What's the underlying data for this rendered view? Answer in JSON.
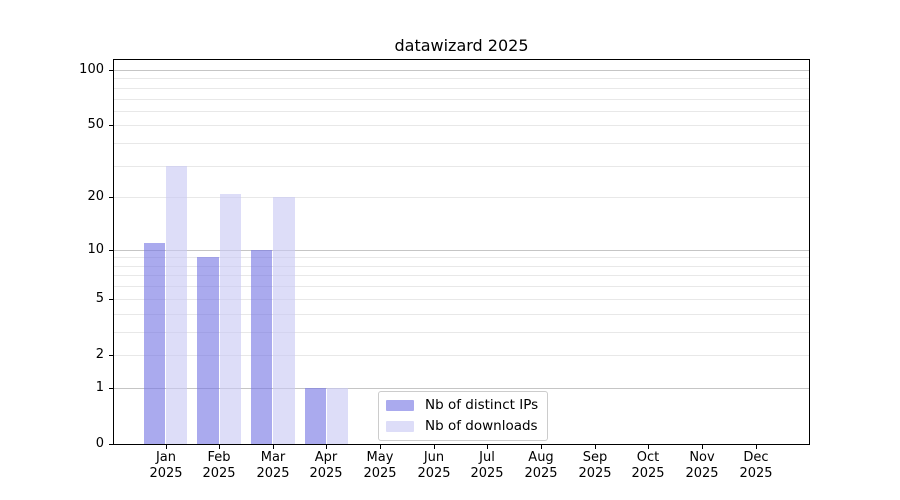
{
  "chart_data": {
    "type": "bar",
    "title": "datawizard 2025",
    "categories": [
      "Jan",
      "Feb",
      "Mar",
      "Apr",
      "May",
      "Jun",
      "Jul",
      "Aug",
      "Sep",
      "Oct",
      "Nov",
      "Dec"
    ],
    "category_sublabel": "2025",
    "series": [
      {
        "name": "Nb of distinct IPs",
        "color": "#aaaaee",
        "fill": "rgba(118,118,228,0.62)",
        "values": [
          11,
          9,
          10,
          1,
          0,
          0,
          0,
          0,
          0,
          0,
          0,
          0
        ]
      },
      {
        "name": "Nb of downloads",
        "color": "#ddddf8",
        "fill": "rgba(200,200,244,0.62)",
        "values": [
          30,
          21,
          20,
          1,
          0,
          0,
          0,
          0,
          0,
          0,
          0,
          0
        ]
      }
    ],
    "yticks": [
      0,
      1,
      2,
      5,
      10,
      20,
      50,
      100
    ],
    "yscale": "log1p",
    "ylim": [
      0,
      113.2
    ],
    "grid": "horizontal, minor light + major at powers of 10",
    "legend_position": "lower-center-inside"
  }
}
